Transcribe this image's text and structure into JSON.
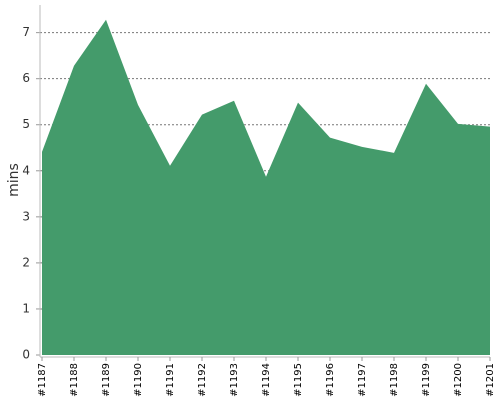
{
  "chart_data": {
    "type": "area",
    "y_label": "mins",
    "categories": [
      "#1187",
      "#1188",
      "#1189",
      "#1190",
      "#1191",
      "#1192",
      "#1193",
      "#1194",
      "#1195",
      "#1196",
      "#1197",
      "#1198",
      "#1199",
      "#1200",
      "#1201"
    ],
    "values": [
      4.41,
      6.28,
      7.28,
      5.43,
      4.11,
      5.22,
      5.52,
      3.87,
      5.48,
      4.72,
      4.52,
      4.39,
      5.89,
      5.02,
      4.96
    ],
    "color": "#449b6b",
    "ylim": [
      0,
      7.6
    ],
    "yticks": [
      0,
      1,
      2,
      3,
      4,
      5,
      6,
      7
    ],
    "grid": true
  }
}
